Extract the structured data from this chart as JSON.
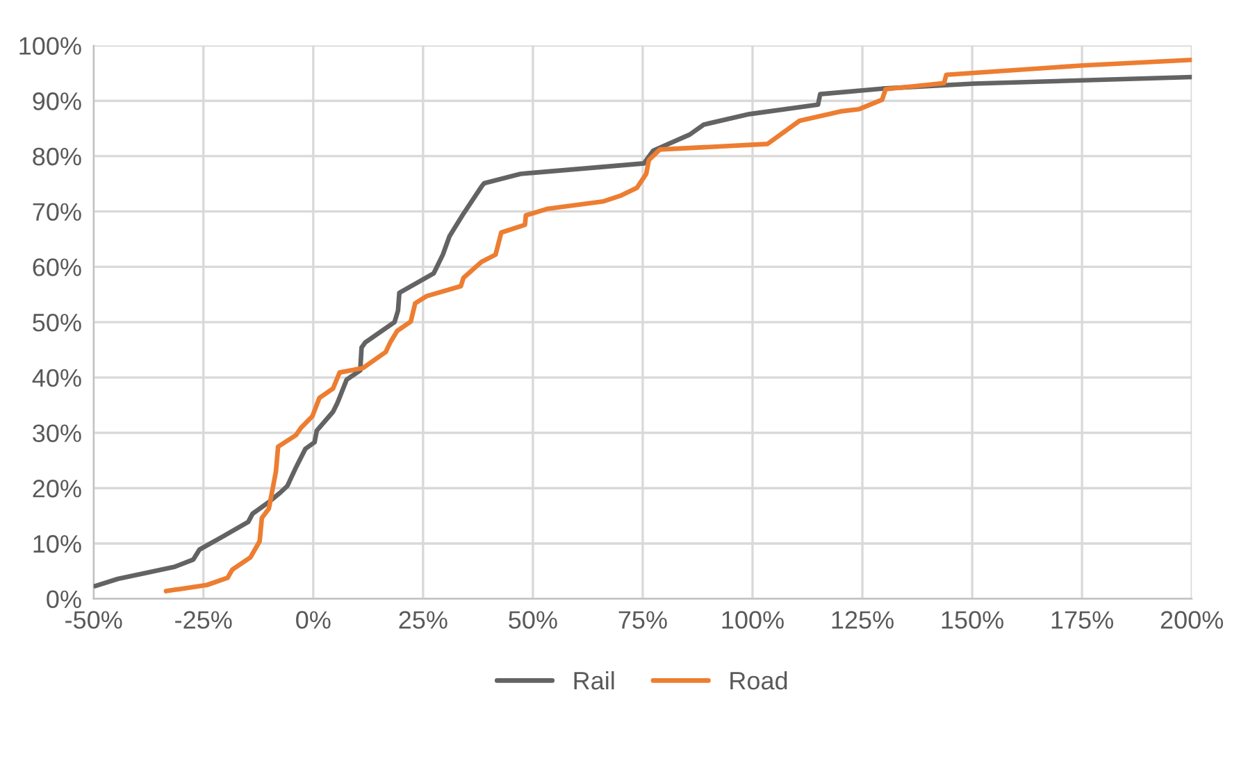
{
  "chart_data": {
    "type": "line",
    "series": [
      {
        "name": "Rail",
        "color": "#636363",
        "x": [
          -49.7,
          -44.5,
          -31.5,
          -27.3,
          -25.9,
          -20.5,
          -14.8,
          -13.8,
          -10.1,
          -7.5,
          -5.9,
          -3.9,
          -1.8,
          0.3,
          0.8,
          4.5,
          5.5,
          7.6,
          10.7,
          11,
          11.8,
          18.5,
          19.3,
          19.6,
          27.4,
          29.5,
          31,
          34.2,
          38.3,
          38.9,
          47.2,
          75.3,
          77.4,
          85.7,
          88.9,
          99.3,
          114.9,
          115.4,
          129.5,
          150.3,
          200
        ],
        "values": [
          2.3,
          3.6,
          5.8,
          7.1,
          8.9,
          11.3,
          13.9,
          15.4,
          17.5,
          19.2,
          20.4,
          23.8,
          27.1,
          28.3,
          30.4,
          33.8,
          35.4,
          39.6,
          41.3,
          45.4,
          46.3,
          50,
          52.1,
          55.3,
          58.8,
          62.2,
          65.5,
          69.6,
          74.5,
          75.1,
          76.8,
          78.7,
          81,
          83.9,
          85.7,
          87.6,
          89.3,
          91.2,
          92.2,
          93.1,
          94.3
        ]
      },
      {
        "name": "Road",
        "color": "#ed7d31",
        "x": [
          -33.5,
          -24.2,
          -19.5,
          -18.4,
          -14.3,
          -12.2,
          -11.7,
          -10.1,
          -8.5,
          -8,
          -3.9,
          -2.8,
          -0.2,
          1.4,
          4.5,
          6,
          11.3,
          16.5,
          17.5,
          19.1,
          22.2,
          23.2,
          25.8,
          33.6,
          34.2,
          38.3,
          41.5,
          42.8,
          48.2,
          48.4,
          53.4,
          65.9,
          70.1,
          73.7,
          75.8,
          76.4,
          78.9,
          103.4,
          110.7,
          120.1,
          124.3,
          129.5,
          130.3,
          143.6,
          144.1,
          175.3,
          200
        ],
        "values": [
          1.4,
          2.5,
          3.8,
          5.3,
          7.5,
          10.4,
          14.6,
          16.3,
          23,
          27.5,
          29.6,
          30.9,
          33,
          36.3,
          38,
          40.9,
          41.7,
          44.6,
          46.3,
          48.4,
          50.1,
          53.4,
          54.7,
          56.5,
          58,
          60.9,
          62.2,
          66.2,
          67.6,
          69.3,
          70.5,
          71.8,
          72.9,
          74.3,
          76.8,
          79.3,
          81.2,
          82.2,
          86.4,
          88.1,
          88.5,
          90.2,
          92.1,
          93.2,
          94.7,
          96.4,
          97.4
        ]
      }
    ],
    "xlim": [
      -50,
      200
    ],
    "ylim": [
      0,
      100
    ],
    "xticks": [
      {
        "value": -50,
        "label": "-50%"
      },
      {
        "value": -25,
        "label": "-25%"
      },
      {
        "value": 0,
        "label": "0%"
      },
      {
        "value": 25,
        "label": "25%"
      },
      {
        "value": 50,
        "label": "50%"
      },
      {
        "value": 75,
        "label": "75%"
      },
      {
        "value": 100,
        "label": "100%"
      },
      {
        "value": 125,
        "label": "125%"
      },
      {
        "value": 150,
        "label": "150%"
      },
      {
        "value": 175,
        "label": "175%"
      },
      {
        "value": 200,
        "label": "200%"
      }
    ],
    "yticks": [
      {
        "value": 0,
        "label": "0%"
      },
      {
        "value": 10,
        "label": "10%"
      },
      {
        "value": 20,
        "label": "20%"
      },
      {
        "value": 30,
        "label": "30%"
      },
      {
        "value": 40,
        "label": "40%"
      },
      {
        "value": 50,
        "label": "50%"
      },
      {
        "value": 60,
        "label": "60%"
      },
      {
        "value": 70,
        "label": "70%"
      },
      {
        "value": 80,
        "label": "80%"
      },
      {
        "value": 90,
        "label": "90%"
      },
      {
        "value": 100,
        "label": "100%"
      }
    ],
    "grid": true,
    "legend": "bottom",
    "marker": "none",
    "line_style": "solid"
  }
}
